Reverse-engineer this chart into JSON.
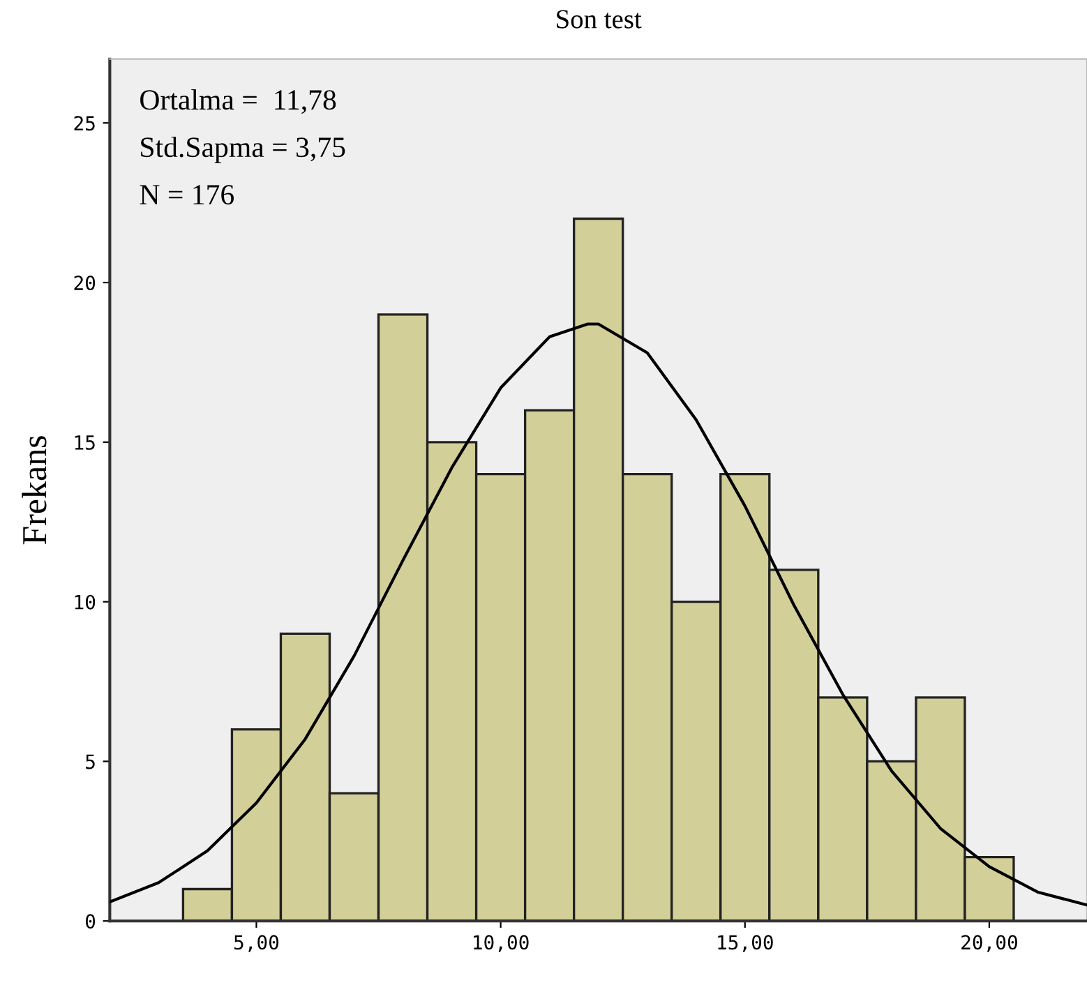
{
  "chart_data": {
    "type": "histogram",
    "title": "Son test",
    "ylabel": "Frekans",
    "bins": [
      3.5,
      4.5,
      5.5,
      6.5,
      7.5,
      8.5,
      9.5,
      10.5,
      11.5,
      12.5,
      13.5,
      14.5,
      15.5,
      16.5,
      17.5,
      18.5,
      19.5,
      20.5
    ],
    "values": [
      1,
      6,
      9,
      4,
      19,
      15,
      14,
      16,
      22,
      14,
      10,
      14,
      11,
      7,
      5,
      7,
      2
    ],
    "color": "#d3cf98",
    "series": [
      {
        "type": "line",
        "color": "#000000",
        "x": [
          2,
          3,
          4,
          5,
          6,
          7,
          8,
          9,
          10,
          11,
          11.78,
          12,
          13,
          14,
          15,
          16,
          17,
          18,
          19,
          20,
          21,
          22
        ],
        "values": [
          0.6,
          1.2,
          2.2,
          3.7,
          5.7,
          8.3,
          11.3,
          14.2,
          16.7,
          18.3,
          18.7,
          18.7,
          17.8,
          15.7,
          13.0,
          9.9,
          7.1,
          4.7,
          2.9,
          1.7,
          0.9,
          0.5
        ]
      }
    ],
    "annotations": [
      "Ortalma =  11,78",
      "Std.Sapma = 3,75",
      "N = 176"
    ],
    "xlim": [
      2,
      22
    ],
    "ylim": [
      0,
      27
    ],
    "xticks": [
      {
        "value": 5,
        "label": "5,00"
      },
      {
        "value": 10,
        "label": "10,00"
      },
      {
        "value": 15,
        "label": "15,00"
      },
      {
        "value": 20,
        "label": "20,00"
      }
    ],
    "yticks": [
      0,
      5,
      10,
      15,
      20,
      25
    ],
    "grid": false,
    "legend": false
  }
}
